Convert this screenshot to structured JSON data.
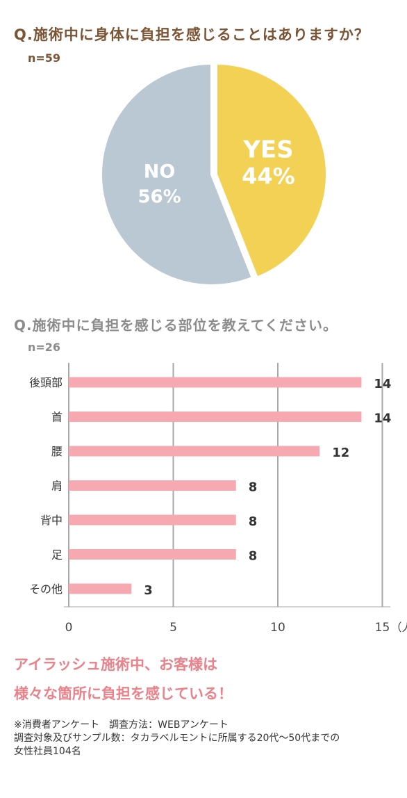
{
  "q1": {
    "title": "Q.施術中に身体に負担を感じることはありますか？",
    "n": "n=59"
  },
  "q2": {
    "title": "Q.施術中に負担を感じる部位を教えてください。",
    "n": "n=26"
  },
  "conclusion": [
    "アイラッシュ施術中、お客様は",
    "様々な箇所に負担を感じている！"
  ],
  "footnote": [
    "※消費者アンケート　調査方法：WEBアンケート",
    "調査対象及びサンプル数：タカラベルモントに所属する20代〜50代までの",
    "女性社員104名"
  ],
  "colors": {
    "yes": "#f2d154",
    "no": "#bac8d3",
    "bar": "#f6a9b1",
    "grid": "#a8a8a8"
  },
  "chart_data": [
    {
      "type": "pie",
      "slices": [
        {
          "label": "YES",
          "value": 44,
          "display": "44%",
          "color": "#f2d154"
        },
        {
          "label": "NO",
          "value": 56,
          "display": "56%",
          "color": "#bac8d3"
        }
      ]
    },
    {
      "type": "bar",
      "orientation": "horizontal",
      "categories": [
        "後頭部",
        "首",
        "腰",
        "肩",
        "背中",
        "足",
        "その他"
      ],
      "values": [
        14,
        14,
        12,
        8,
        8,
        8,
        3
      ],
      "xticks": [
        0,
        5,
        10,
        15
      ],
      "xunit": "（人）",
      "xlim": [
        0,
        15
      ],
      "grid": true
    }
  ]
}
